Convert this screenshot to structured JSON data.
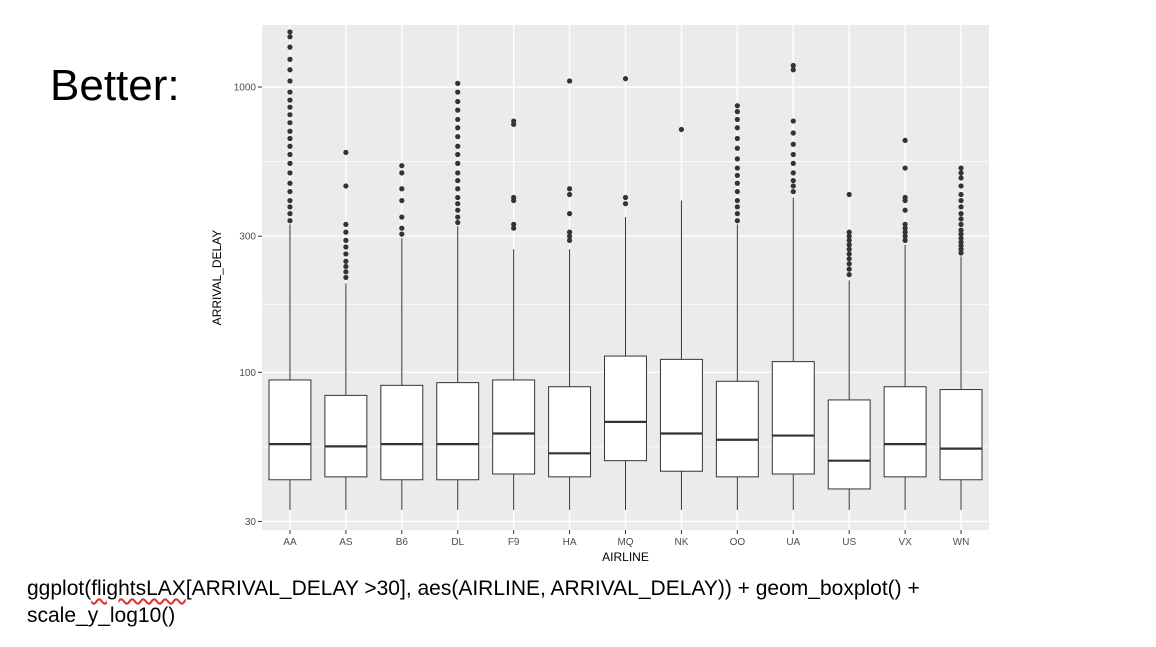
{
  "slide": {
    "title": "Better:",
    "code_line1_a": "ggplot(",
    "code_line1_b": "flightsLAX",
    "code_line1_c": "[ARRIVAL_DELAY >30], aes(AIRLINE, ARRIVAL_DELAY)) + geom_boxplot() +",
    "code_line2": "scale_y_log10()"
  },
  "chart_data": {
    "type": "boxplot",
    "xlabel": "AIRLINE",
    "ylabel": "ARRIVAL_DELAY",
    "y_scale": "log10",
    "ylim": [
      28,
      1650
    ],
    "y_ticks": [
      30,
      100,
      300,
      1000
    ],
    "y_tick_labels": [
      "30",
      "100",
      "300",
      "1000"
    ],
    "grid": true,
    "colors": {
      "panel": "#ebebeb",
      "grid": "#ffffff",
      "box_fill": "#ffffff",
      "box_line": "#333333",
      "outlier": "#333333"
    },
    "categories": [
      "AA",
      "AS",
      "B6",
      "DL",
      "F9",
      "HA",
      "MQ",
      "NK",
      "OO",
      "UA",
      "US",
      "VX",
      "WN"
    ],
    "boxes": [
      {
        "q1": 42,
        "median": 56,
        "q3": 94,
        "whisker_high": 330,
        "outliers": [
          340,
          360,
          380,
          400,
          430,
          460,
          500,
          540,
          580,
          620,
          660,
          700,
          750,
          800,
          850,
          900,
          960,
          1050,
          1150,
          1250,
          1380,
          1500,
          1560
        ]
      },
      {
        "q1": 43,
        "median": 55,
        "q3": 83,
        "whisker_high": 205,
        "outliers": [
          215,
          225,
          235,
          245,
          260,
          275,
          290,
          310,
          330,
          450,
          590
        ]
      },
      {
        "q1": 42,
        "median": 56,
        "q3": 90,
        "whisker_high": 295,
        "outliers": [
          305,
          320,
          350,
          400,
          440,
          500,
          530
        ]
      },
      {
        "q1": 42,
        "median": 56,
        "q3": 92,
        "whisker_high": 325,
        "outliers": [
          335,
          350,
          370,
          390,
          410,
          440,
          470,
          500,
          540,
          580,
          620,
          670,
          720,
          770,
          830,
          890,
          960,
          1030
        ]
      },
      {
        "q1": 44,
        "median": 61,
        "q3": 94,
        "whisker_high": 270,
        "outliers": [
          320,
          330,
          400,
          410,
          740,
          760
        ]
      },
      {
        "q1": 43,
        "median": 52,
        "q3": 89,
        "whisker_high": 270,
        "outliers": [
          290,
          300,
          310,
          360,
          420,
          440,
          1050
        ]
      },
      {
        "q1": 49,
        "median": 67,
        "q3": 114,
        "whisker_high": 350,
        "outliers": [
          390,
          410,
          1070
        ]
      },
      {
        "q1": 45,
        "median": 61,
        "q3": 111,
        "whisker_high": 400,
        "outliers": [
          710
        ]
      },
      {
        "q1": 43,
        "median": 58,
        "q3": 93,
        "whisker_high": 330,
        "outliers": [
          340,
          360,
          380,
          400,
          430,
          460,
          490,
          520,
          560,
          610,
          660,
          720,
          770,
          820,
          860
        ]
      },
      {
        "q1": 44,
        "median": 60,
        "q3": 109,
        "whisker_high": 410,
        "outliers": [
          430,
          450,
          470,
          500,
          540,
          580,
          630,
          690,
          760,
          1150,
          1190
        ]
      },
      {
        "q1": 39,
        "median": 49,
        "q3": 80,
        "whisker_high": 210,
        "outliers": [
          220,
          230,
          240,
          250,
          260,
          270,
          280,
          290,
          300,
          310,
          420
        ]
      },
      {
        "q1": 43,
        "median": 56,
        "q3": 89,
        "whisker_high": 280,
        "outliers": [
          290,
          300,
          310,
          320,
          330,
          370,
          400,
          410,
          520,
          650
        ]
      },
      {
        "q1": 42,
        "median": 54,
        "q3": 87,
        "whisker_high": 255,
        "outliers": [
          262,
          270,
          278,
          286,
          295,
          305,
          315,
          330,
          345,
          360,
          380,
          400,
          420,
          450,
          480,
          500,
          520
        ]
      }
    ]
  }
}
